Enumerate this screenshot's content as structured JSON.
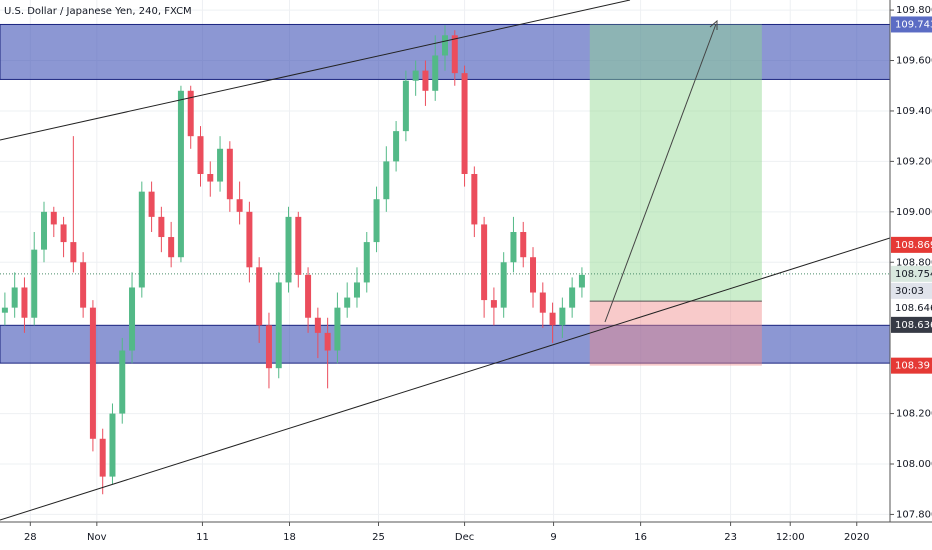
{
  "chart_data": {
    "type": "candlestick",
    "title": "U.S. Dollar / Japanese Yen, 240, FXCM",
    "up_color": "#53b987",
    "down_color": "#eb4d5c",
    "grid": true,
    "xlim": [
      -0.5,
      90.5
    ],
    "xticks": [
      {
        "value": 2.6,
        "label": "28"
      },
      {
        "value": 9.4,
        "label": "Nov"
      },
      {
        "value": 20.2,
        "label": "11"
      },
      {
        "value": 29.1,
        "label": "18"
      },
      {
        "value": 38.2,
        "label": "25"
      },
      {
        "value": 47.0,
        "label": "Dec"
      },
      {
        "value": 56.1,
        "label": "9"
      },
      {
        "value": 65.0,
        "label": "16"
      },
      {
        "value": 74.2,
        "label": "23"
      },
      {
        "value": 80.3,
        "label": "12:00"
      },
      {
        "value": 87.1,
        "label": "2020"
      }
    ],
    "ylim": [
      107.77,
      109.84
    ],
    "yticks": [
      {
        "value": 107.8,
        "label": "107.800"
      },
      {
        "value": 108.0,
        "label": "108.000"
      },
      {
        "value": 108.2,
        "label": "108.200"
      },
      {
        "value": 108.8,
        "label": "108.800"
      },
      {
        "value": 109.0,
        "label": "109.000"
      },
      {
        "value": 109.2,
        "label": "109.200"
      },
      {
        "value": 109.4,
        "label": "109.400"
      },
      {
        "value": 109.6,
        "label": "109.600"
      },
      {
        "value": 109.8,
        "label": "109.800"
      }
    ],
    "x": [
      0,
      1,
      2,
      3,
      4,
      5,
      6,
      7,
      8,
      9,
      10,
      11,
      12,
      13,
      14,
      15,
      16,
      17,
      18,
      19,
      20,
      21,
      22,
      23,
      24,
      25,
      26,
      27,
      28,
      29,
      30,
      31,
      32,
      33,
      34,
      35,
      36,
      37,
      38,
      39,
      40,
      41,
      42,
      43,
      44,
      45,
      46,
      47,
      48,
      49,
      50,
      51,
      52,
      53,
      54,
      55,
      56,
      57,
      58,
      59
    ],
    "open": [
      108.6,
      108.62,
      108.7,
      108.58,
      108.85,
      109.0,
      108.95,
      108.88,
      108.8,
      108.62,
      108.1,
      107.95,
      108.2,
      108.45,
      108.7,
      109.08,
      108.98,
      108.9,
      108.82,
      109.48,
      109.3,
      109.15,
      109.12,
      109.25,
      109.05,
      109.0,
      108.78,
      108.55,
      108.38,
      108.72,
      108.98,
      108.75,
      108.58,
      108.52,
      108.45,
      108.62,
      108.66,
      108.72,
      108.88,
      109.05,
      109.2,
      109.32,
      109.52,
      109.56,
      109.48,
      109.62,
      109.7,
      109.55,
      109.15,
      108.95,
      108.65,
      108.62,
      108.8,
      108.92,
      108.82,
      108.68,
      108.6,
      108.55,
      108.62,
      108.7
    ],
    "high": [
      108.68,
      108.76,
      108.74,
      108.92,
      109.04,
      109.02,
      108.98,
      109.3,
      108.84,
      108.65,
      108.14,
      108.24,
      108.5,
      108.76,
      109.12,
      109.12,
      109.02,
      108.96,
      109.5,
      109.5,
      109.34,
      109.2,
      109.3,
      109.28,
      109.12,
      109.04,
      108.82,
      108.6,
      108.76,
      109.02,
      109.0,
      108.78,
      108.62,
      108.58,
      108.68,
      108.72,
      108.78,
      108.92,
      109.1,
      109.26,
      109.36,
      109.56,
      109.6,
      109.6,
      109.7,
      109.74,
      109.72,
      109.58,
      109.18,
      108.98,
      108.7,
      108.84,
      108.98,
      108.96,
      108.86,
      108.72,
      108.64,
      108.66,
      108.74,
      108.78
    ],
    "low": [
      108.55,
      108.58,
      108.52,
      108.55,
      108.8,
      108.9,
      108.82,
      108.76,
      108.58,
      108.05,
      107.88,
      107.92,
      108.16,
      108.4,
      108.66,
      108.92,
      108.84,
      108.78,
      108.8,
      109.25,
      109.1,
      109.06,
      109.08,
      109.0,
      108.95,
      108.72,
      108.48,
      108.3,
      108.34,
      108.68,
      108.7,
      108.52,
      108.42,
      108.3,
      108.4,
      108.58,
      108.62,
      108.68,
      108.84,
      109.0,
      109.16,
      109.28,
      109.46,
      109.42,
      109.44,
      109.56,
      109.5,
      109.1,
      108.9,
      108.58,
      108.55,
      108.58,
      108.76,
      108.78,
      108.62,
      108.54,
      108.48,
      108.5,
      108.58,
      108.66
    ],
    "close": [
      108.62,
      108.7,
      108.58,
      108.85,
      109.0,
      108.95,
      108.88,
      108.8,
      108.62,
      108.1,
      107.95,
      108.2,
      108.45,
      108.7,
      109.08,
      108.98,
      108.9,
      108.82,
      109.48,
      109.3,
      109.15,
      109.12,
      109.25,
      109.05,
      109.0,
      108.78,
      108.55,
      108.38,
      108.72,
      108.98,
      108.75,
      108.58,
      108.52,
      108.45,
      108.62,
      108.66,
      108.72,
      108.88,
      109.05,
      109.2,
      109.32,
      109.52,
      109.56,
      109.48,
      109.62,
      109.7,
      109.55,
      109.15,
      108.95,
      108.65,
      108.62,
      108.8,
      108.92,
      108.82,
      108.68,
      108.6,
      108.55,
      108.62,
      108.7,
      108.75
    ],
    "zones": [
      {
        "from": 109.525,
        "to": 109.743,
        "color": "#3f51b5"
      },
      {
        "from": 108.4,
        "to": 108.55,
        "color": "#3f51b5"
      }
    ],
    "position": {
      "entry": 108.646,
      "target": 109.743,
      "stop": 108.39,
      "x_start": 59.8,
      "x_end": 77.4,
      "profit_color": "#8fd88f",
      "loss_color": "#f08a8a"
    },
    "last_price": {
      "value": 108.754,
      "countdown": "30:03"
    },
    "price_labels": [
      {
        "value": 109.743,
        "bg": "#5b6cc4",
        "fg": "#ffffff"
      },
      {
        "value": 108.869,
        "bg": "#e53935",
        "fg": "#ffffff"
      },
      {
        "value": 108.646,
        "bg": "#ffffff",
        "fg": "#131722"
      },
      {
        "value": 108.636,
        "bg": "#363a45",
        "fg": "#ffffff"
      },
      {
        "value": 108.39,
        "bg": "#e53935",
        "fg": "#ffffff"
      }
    ]
  }
}
